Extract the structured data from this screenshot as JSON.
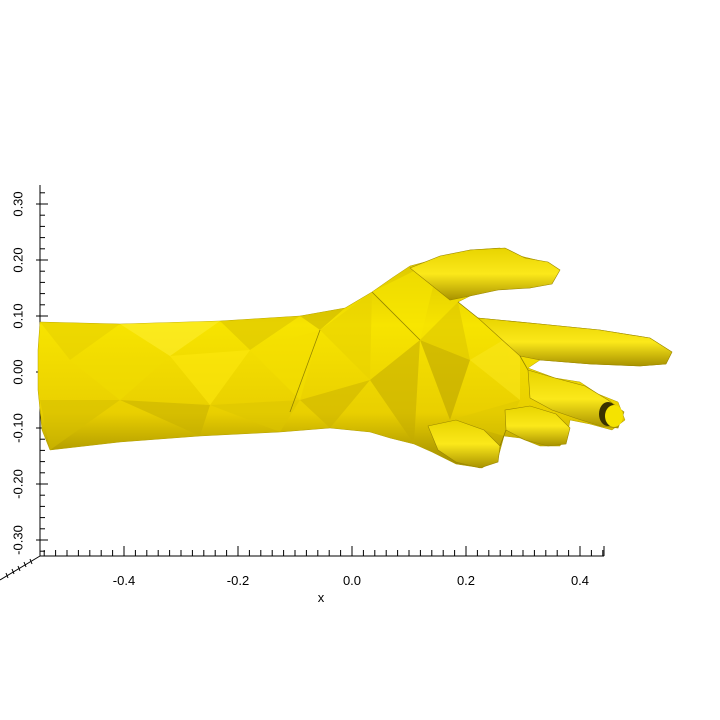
{
  "viewer": {
    "mesh_name": "hand",
    "mesh_color": "#f2dc00",
    "mesh_shadow_color": "#7a6b00",
    "mesh_highlight_color": "#fff23a"
  },
  "axes": {
    "x": {
      "label": "x",
      "ticks": [
        "-0.4",
        "-0.2",
        "0.0",
        "0.2",
        "0.4"
      ],
      "range": [
        -0.55,
        0.44
      ]
    },
    "y": {
      "label": "",
      "ticks": [
        "-0.30",
        "-0.20",
        "-0.10",
        "0.00",
        "0.10",
        "0.20",
        "0.30"
      ],
      "range": [
        -0.33,
        0.33
      ]
    }
  }
}
